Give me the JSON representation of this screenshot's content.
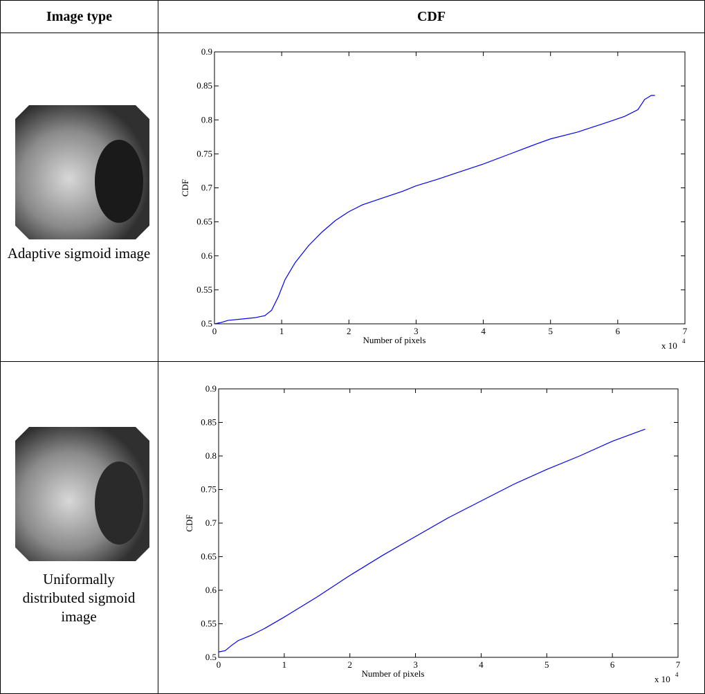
{
  "table": {
    "header": [
      "Image type",
      "CDF"
    ],
    "rows": [
      {
        "label": "Adaptive sigmoid image"
      },
      {
        "label": "Uniformally distributed sigmoid image"
      }
    ]
  },
  "chart_data": [
    {
      "type": "line",
      "x_label": "Number of pixels",
      "y_label": "CDF",
      "x_scale_label": {
        "base": "x 10",
        "exponent": "4"
      },
      "x": [
        0,
        1000,
        2000,
        4000,
        6000,
        7500,
        8500,
        9500,
        10500,
        12000,
        14000,
        16000,
        18000,
        20000,
        22000,
        25000,
        28000,
        30000,
        33000,
        36000,
        40000,
        44000,
        48000,
        50000,
        54000,
        58000,
        61000,
        63000,
        64000,
        65000,
        65536
      ],
      "series": [
        {
          "color": "#0000ff",
          "values": [
            0.5,
            0.502,
            0.505,
            0.507,
            0.509,
            0.512,
            0.52,
            0.54,
            0.565,
            0.59,
            0.615,
            0.635,
            0.652,
            0.665,
            0.675,
            0.685,
            0.695,
            0.703,
            0.712,
            0.722,
            0.735,
            0.75,
            0.765,
            0.772,
            0.782,
            0.795,
            0.805,
            0.815,
            0.83,
            0.836,
            0.836
          ]
        }
      ],
      "xlim": [
        0,
        70000
      ],
      "xticks": [
        0,
        {
          "value": 10000,
          "label": "1"
        },
        {
          "value": 20000,
          "label": "2"
        },
        {
          "value": 30000,
          "label": "3"
        },
        {
          "value": 40000,
          "label": "4"
        },
        {
          "value": 50000,
          "label": "5"
        },
        {
          "value": 60000,
          "label": "6"
        },
        {
          "value": 70000,
          "label": "7"
        }
      ],
      "ylim": [
        0.5,
        0.9
      ],
      "yticks": [
        0.5,
        0.55,
        0.6,
        0.65,
        0.7,
        0.75,
        0.8,
        0.85,
        0.9
      ]
    },
    {
      "type": "line",
      "x_label": "Number of pixels",
      "y_label": "CDF",
      "x_scale_label": {
        "base": "x 10",
        "exponent": "4"
      },
      "x": [
        0,
        1000,
        2000,
        3000,
        5000,
        7000,
        10000,
        15000,
        20000,
        25000,
        30000,
        35000,
        40000,
        45000,
        50000,
        55000,
        60000,
        65000
      ],
      "series": [
        {
          "color": "#0000ff",
          "values": [
            0.508,
            0.51,
            0.518,
            0.525,
            0.533,
            0.543,
            0.56,
            0.59,
            0.622,
            0.652,
            0.68,
            0.708,
            0.733,
            0.758,
            0.78,
            0.8,
            0.822,
            0.84
          ]
        }
      ],
      "xlim": [
        0,
        70000
      ],
      "xticks": [
        0,
        {
          "value": 10000,
          "label": "1"
        },
        {
          "value": 20000,
          "label": "2"
        },
        {
          "value": 30000,
          "label": "3"
        },
        {
          "value": 40000,
          "label": "4"
        },
        {
          "value": 50000,
          "label": "5"
        },
        {
          "value": 60000,
          "label": "6"
        },
        {
          "value": 70000,
          "label": "7"
        }
      ],
      "ylim": [
        0.5,
        0.9
      ],
      "yticks": [
        0.5,
        0.55,
        0.6,
        0.65,
        0.7,
        0.75,
        0.8,
        0.85,
        0.9
      ]
    }
  ]
}
